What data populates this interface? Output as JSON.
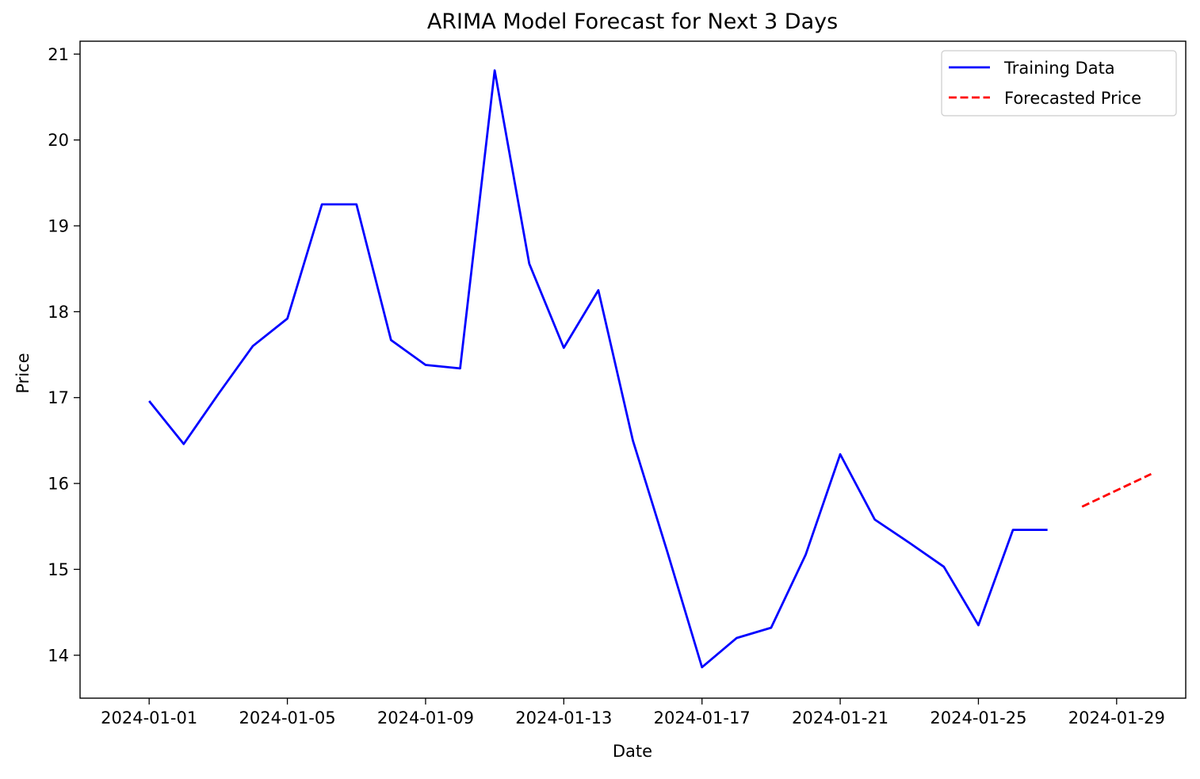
{
  "chart_data": {
    "type": "line",
    "title": "ARIMA Model Forecast for Next 3 Days",
    "xlabel": "Date",
    "ylabel": "Price",
    "xlim": [
      "2023-12-30",
      "2024-01-31"
    ],
    "ylim": [
      13.5,
      21.15
    ],
    "x_ticks": [
      "2024-01-01",
      "2024-01-05",
      "2024-01-09",
      "2024-01-13",
      "2024-01-17",
      "2024-01-21",
      "2024-01-25",
      "2024-01-29"
    ],
    "y_ticks": [
      14,
      15,
      16,
      17,
      18,
      19,
      20,
      21
    ],
    "grid": false,
    "legend_position": "top-right",
    "series": [
      {
        "name": "Training Data",
        "style": "solid",
        "color": "#0000ff",
        "x": [
          "2024-01-01",
          "2024-01-02",
          "2024-01-03",
          "2024-01-04",
          "2024-01-05",
          "2024-01-06",
          "2024-01-07",
          "2024-01-08",
          "2024-01-09",
          "2024-01-10",
          "2024-01-11",
          "2024-01-12",
          "2024-01-13",
          "2024-01-14",
          "2024-01-15",
          "2024-01-16",
          "2024-01-17",
          "2024-01-18",
          "2024-01-19",
          "2024-01-20",
          "2024-01-21",
          "2024-01-22",
          "2024-01-23",
          "2024-01-24",
          "2024-01-25",
          "2024-01-26",
          "2024-01-27"
        ],
        "y": [
          16.96,
          16.46,
          17.04,
          17.6,
          17.92,
          19.25,
          19.25,
          17.67,
          17.38,
          17.34,
          20.81,
          18.56,
          17.58,
          18.25,
          16.5,
          15.2,
          13.86,
          14.2,
          14.32,
          15.17,
          16.34,
          15.58,
          15.31,
          15.03,
          14.35,
          15.46,
          15.46
        ]
      },
      {
        "name": "Forecasted Price",
        "style": "dashed",
        "color": "#ff0000",
        "x": [
          "2024-01-28",
          "2024-01-29",
          "2024-01-30"
        ],
        "y": [
          15.73,
          15.92,
          16.11
        ]
      }
    ]
  }
}
